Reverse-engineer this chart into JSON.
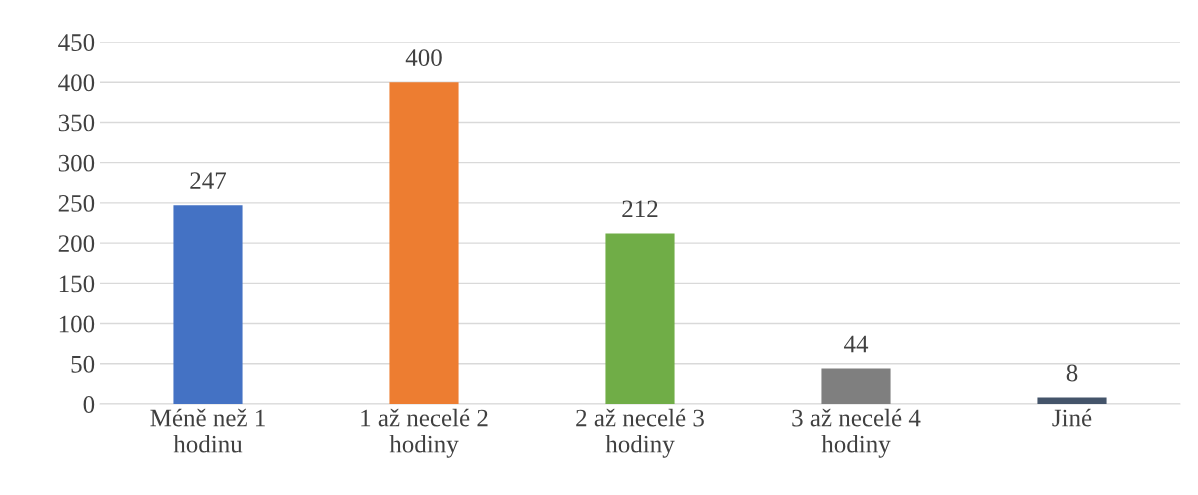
{
  "chart_data": {
    "type": "bar",
    "categories": [
      "Méně než 1 hodinu",
      "1 až necelé 2 hodiny",
      "2 až necelé 3 hodiny",
      "3 až necelé 4 hodiny",
      "Jiné"
    ],
    "values": [
      247,
      400,
      212,
      44,
      8
    ],
    "colors": [
      "#4472c4",
      "#ed7d31",
      "#70ad47",
      "#7f7f7f",
      "#44546a"
    ],
    "ylim": [
      0,
      450
    ],
    "yticks": [
      0,
      50,
      100,
      150,
      200,
      250,
      300,
      350,
      400,
      450
    ],
    "grid": "y",
    "data_labels": true,
    "legend": false
  }
}
